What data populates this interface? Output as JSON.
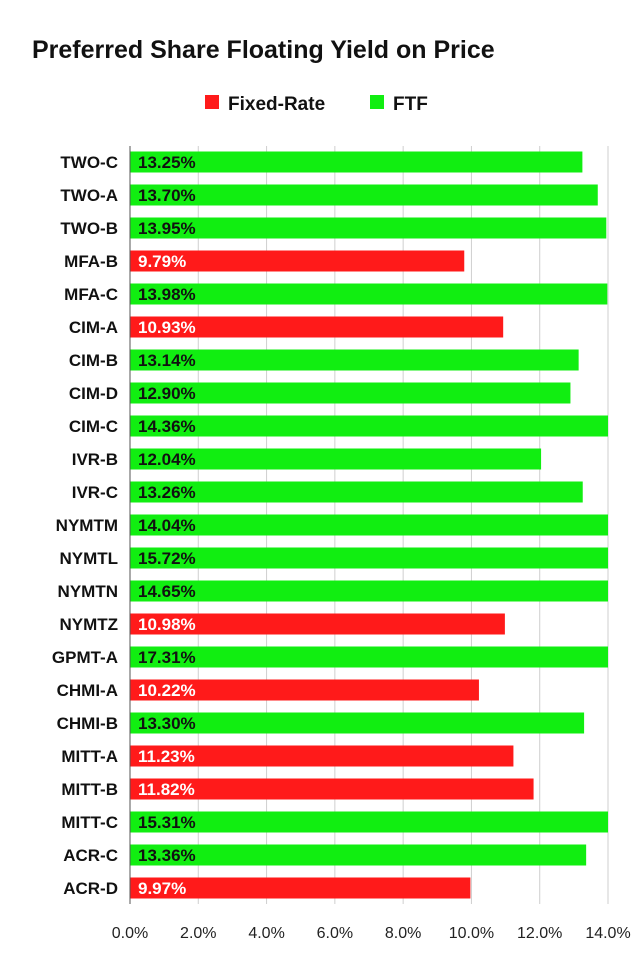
{
  "chart_data": {
    "type": "bar",
    "orientation": "horizontal",
    "title": "Preferred Share Floating Yield on Price",
    "xlabel": "",
    "ylabel": "",
    "xlim": [
      0,
      14
    ],
    "grid": true,
    "legend_position": "top-center",
    "legend": [
      {
        "name": "Fixed-Rate",
        "color": "#ff1a1a"
      },
      {
        "name": "FTF",
        "color": "#11ee11"
      }
    ],
    "x_ticks": [
      0,
      2,
      4,
      6,
      8,
      10,
      12,
      14
    ],
    "x_tick_labels": [
      "0.0%",
      "2.0%",
      "4.0%",
      "6.0%",
      "8.0%",
      "10.0%",
      "12.0%",
      "14.0%"
    ],
    "categories": [
      "TWO-C",
      "TWO-A",
      "TWO-B",
      "MFA-B",
      "MFA-C",
      "CIM-A",
      "CIM-B",
      "CIM-D",
      "CIM-C",
      "IVR-B",
      "IVR-C",
      "NYMTM",
      "NYMTL",
      "NYMTN",
      "NYMTZ",
      "GPMT-A",
      "CHMI-A",
      "CHMI-B",
      "MITT-A",
      "MITT-B",
      "MITT-C",
      "ACR-C",
      "ACR-D"
    ],
    "values": [
      13.25,
      13.7,
      13.95,
      9.79,
      13.98,
      10.93,
      13.14,
      12.9,
      14.36,
      12.04,
      13.26,
      14.04,
      15.72,
      14.65,
      10.98,
      17.31,
      10.22,
      13.3,
      11.23,
      11.82,
      15.31,
      13.36,
      9.97
    ],
    "value_labels": [
      "13.25%",
      "13.70%",
      "13.95%",
      "9.79%",
      "13.98%",
      "10.93%",
      "13.14%",
      "12.90%",
      "14.36%",
      "12.04%",
      "13.26%",
      "14.04%",
      "15.72%",
      "14.65%",
      "10.98%",
      "17.31%",
      "10.22%",
      "13.30%",
      "11.23%",
      "11.82%",
      "15.31%",
      "13.36%",
      "9.97%"
    ],
    "series_type": [
      "FTF",
      "FTF",
      "FTF",
      "Fixed-Rate",
      "FTF",
      "Fixed-Rate",
      "FTF",
      "FTF",
      "FTF",
      "FTF",
      "FTF",
      "FTF",
      "FTF",
      "FTF",
      "Fixed-Rate",
      "FTF",
      "Fixed-Rate",
      "FTF",
      "Fixed-Rate",
      "Fixed-Rate",
      "FTF",
      "FTF",
      "Fixed-Rate"
    ]
  }
}
